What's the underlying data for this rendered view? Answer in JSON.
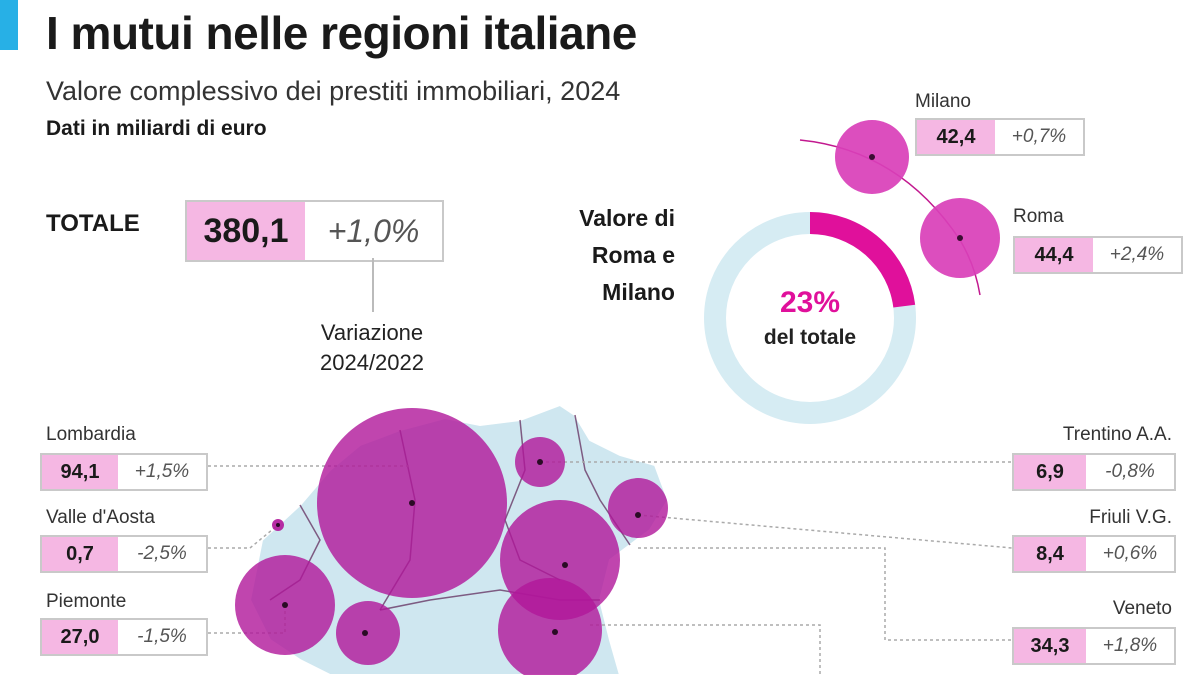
{
  "header": {
    "title": "I mutui nelle regioni italiane",
    "subtitle": "Valore complessivo dei prestiti immobiliari, 2024",
    "units": "Dati in miliardi di euro"
  },
  "total": {
    "label": "TOTALE",
    "value": "380,1",
    "change": "+1,0%",
    "note_line1": "Variazione",
    "note_line2": "2024/2022"
  },
  "donut": {
    "label_line1": "Valore di",
    "label_line2": "Roma e",
    "label_line3": "Milano",
    "percent_text": "23%",
    "percent_value": 23,
    "caption": "del totale"
  },
  "cities": [
    {
      "name": "Milano",
      "value": "42,4",
      "change": "+0,7%"
    },
    {
      "name": "Roma",
      "value": "44,4",
      "change": "+2,4%"
    }
  ],
  "chart_data": {
    "type": "bubble-map",
    "title": "I mutui nelle regioni italiane",
    "subtitle": "Valore complessivo dei prestiti immobiliari, 2024",
    "units": "Dati in miliardi di euro",
    "total": {
      "value": 380.1,
      "change_pct": 1.0
    },
    "share_roma_milano_pct": 23,
    "cities": [
      {
        "name": "Milano",
        "value": 42.4,
        "change_pct": 0.7
      },
      {
        "name": "Roma",
        "value": 44.4,
        "change_pct": 2.4
      }
    ],
    "regions": [
      {
        "name": "Lombardia",
        "value": "94,1",
        "change": "+1,5%",
        "value_num": 94.1,
        "change_pct": 1.5
      },
      {
        "name": "Valle d'Aosta",
        "value": "0,7",
        "change": "-2,5%",
        "value_num": 0.7,
        "change_pct": -2.5
      },
      {
        "name": "Piemonte",
        "value": "27,0",
        "change": "-1,5%",
        "value_num": 27.0,
        "change_pct": -1.5
      },
      {
        "name": "Trentino A.A.",
        "value": "6,9",
        "change": "-0,8%",
        "value_num": 6.9,
        "change_pct": -0.8
      },
      {
        "name": "Friuli V.G.",
        "value": "8,4",
        "change": "+0,6%",
        "value_num": 8.4,
        "change_pct": 0.6
      },
      {
        "name": "Veneto",
        "value": "34,3",
        "change": "+1,8%",
        "value_num": 34.3,
        "change_pct": 1.8
      }
    ]
  },
  "colors": {
    "accent": "#27b0e6",
    "bubble": "#d93fb8",
    "bubble_light": "#f5b7e3",
    "magenta": "#e0109b",
    "donut_track": "#d6ecf3",
    "map_land": "#cfe7f0"
  }
}
